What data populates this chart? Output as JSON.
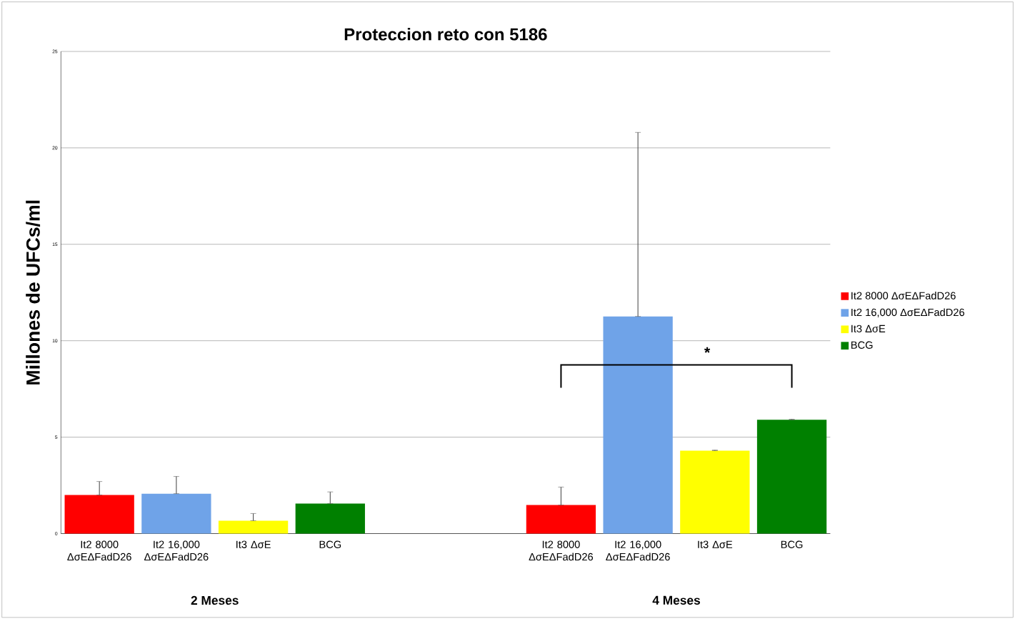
{
  "chart_data": {
    "type": "bar",
    "title": "Proteccion reto con 5186",
    "ylabel": "Millones de UFCs/ml",
    "categories": [
      "It2 8000 ΔσEΔFadD26",
      "It2 16,000 ΔσEΔFadD26",
      "It3 ΔσE",
      "BCG",
      null,
      null,
      "It2 8000 ΔσEΔFadD26",
      "It2 16,000 ΔσEΔFadD26",
      "It3 ΔσE",
      "BCG"
    ],
    "series": [
      {
        "name": "It2 8000 ΔσEΔFadD26",
        "color": "#ff0000",
        "values": [
          2.0,
          null,
          null,
          null,
          null,
          null,
          1.48,
          null,
          null,
          null
        ],
        "errors": [
          [
            2.0,
            2.7
          ],
          null,
          null,
          null,
          null,
          null,
          [
            1.48,
            2.41
          ],
          null,
          null,
          null
        ]
      },
      {
        "name": "It2 16,000 ΔσEΔFadD26",
        "color": "#6fa3e8",
        "values": [
          null,
          2.07,
          null,
          null,
          null,
          null,
          null,
          11.26,
          null,
          null
        ],
        "errors": [
          null,
          [
            2.07,
            2.96
          ],
          null,
          null,
          null,
          null,
          null,
          [
            11.26,
            20.8
          ],
          null,
          null
        ]
      },
      {
        "name": "It3 ΔσE",
        "color": "#ffff00",
        "values": [
          null,
          null,
          0.67,
          null,
          null,
          null,
          null,
          null,
          4.3,
          null
        ],
        "errors": [
          null,
          null,
          [
            0.67,
            1.04
          ],
          null,
          null,
          null,
          null,
          null,
          [
            4.3,
            4.33
          ],
          null
        ]
      },
      {
        "name": "BCG",
        "color": "#008000",
        "values": [
          null,
          null,
          null,
          1.56,
          null,
          null,
          null,
          null,
          null,
          5.9
        ],
        "errors": [
          null,
          null,
          null,
          [
            1.56,
            2.16
          ],
          null,
          null,
          null,
          null,
          null,
          [
            5.9,
            5.93
          ]
        ]
      }
    ],
    "ylim": [
      0,
      25
    ],
    "yticks": [
      0,
      5,
      10,
      15,
      20,
      25
    ],
    "grid": "y",
    "legend": "right",
    "annotations": [
      "2 Meses",
      "4 Meses",
      "*"
    ]
  }
}
